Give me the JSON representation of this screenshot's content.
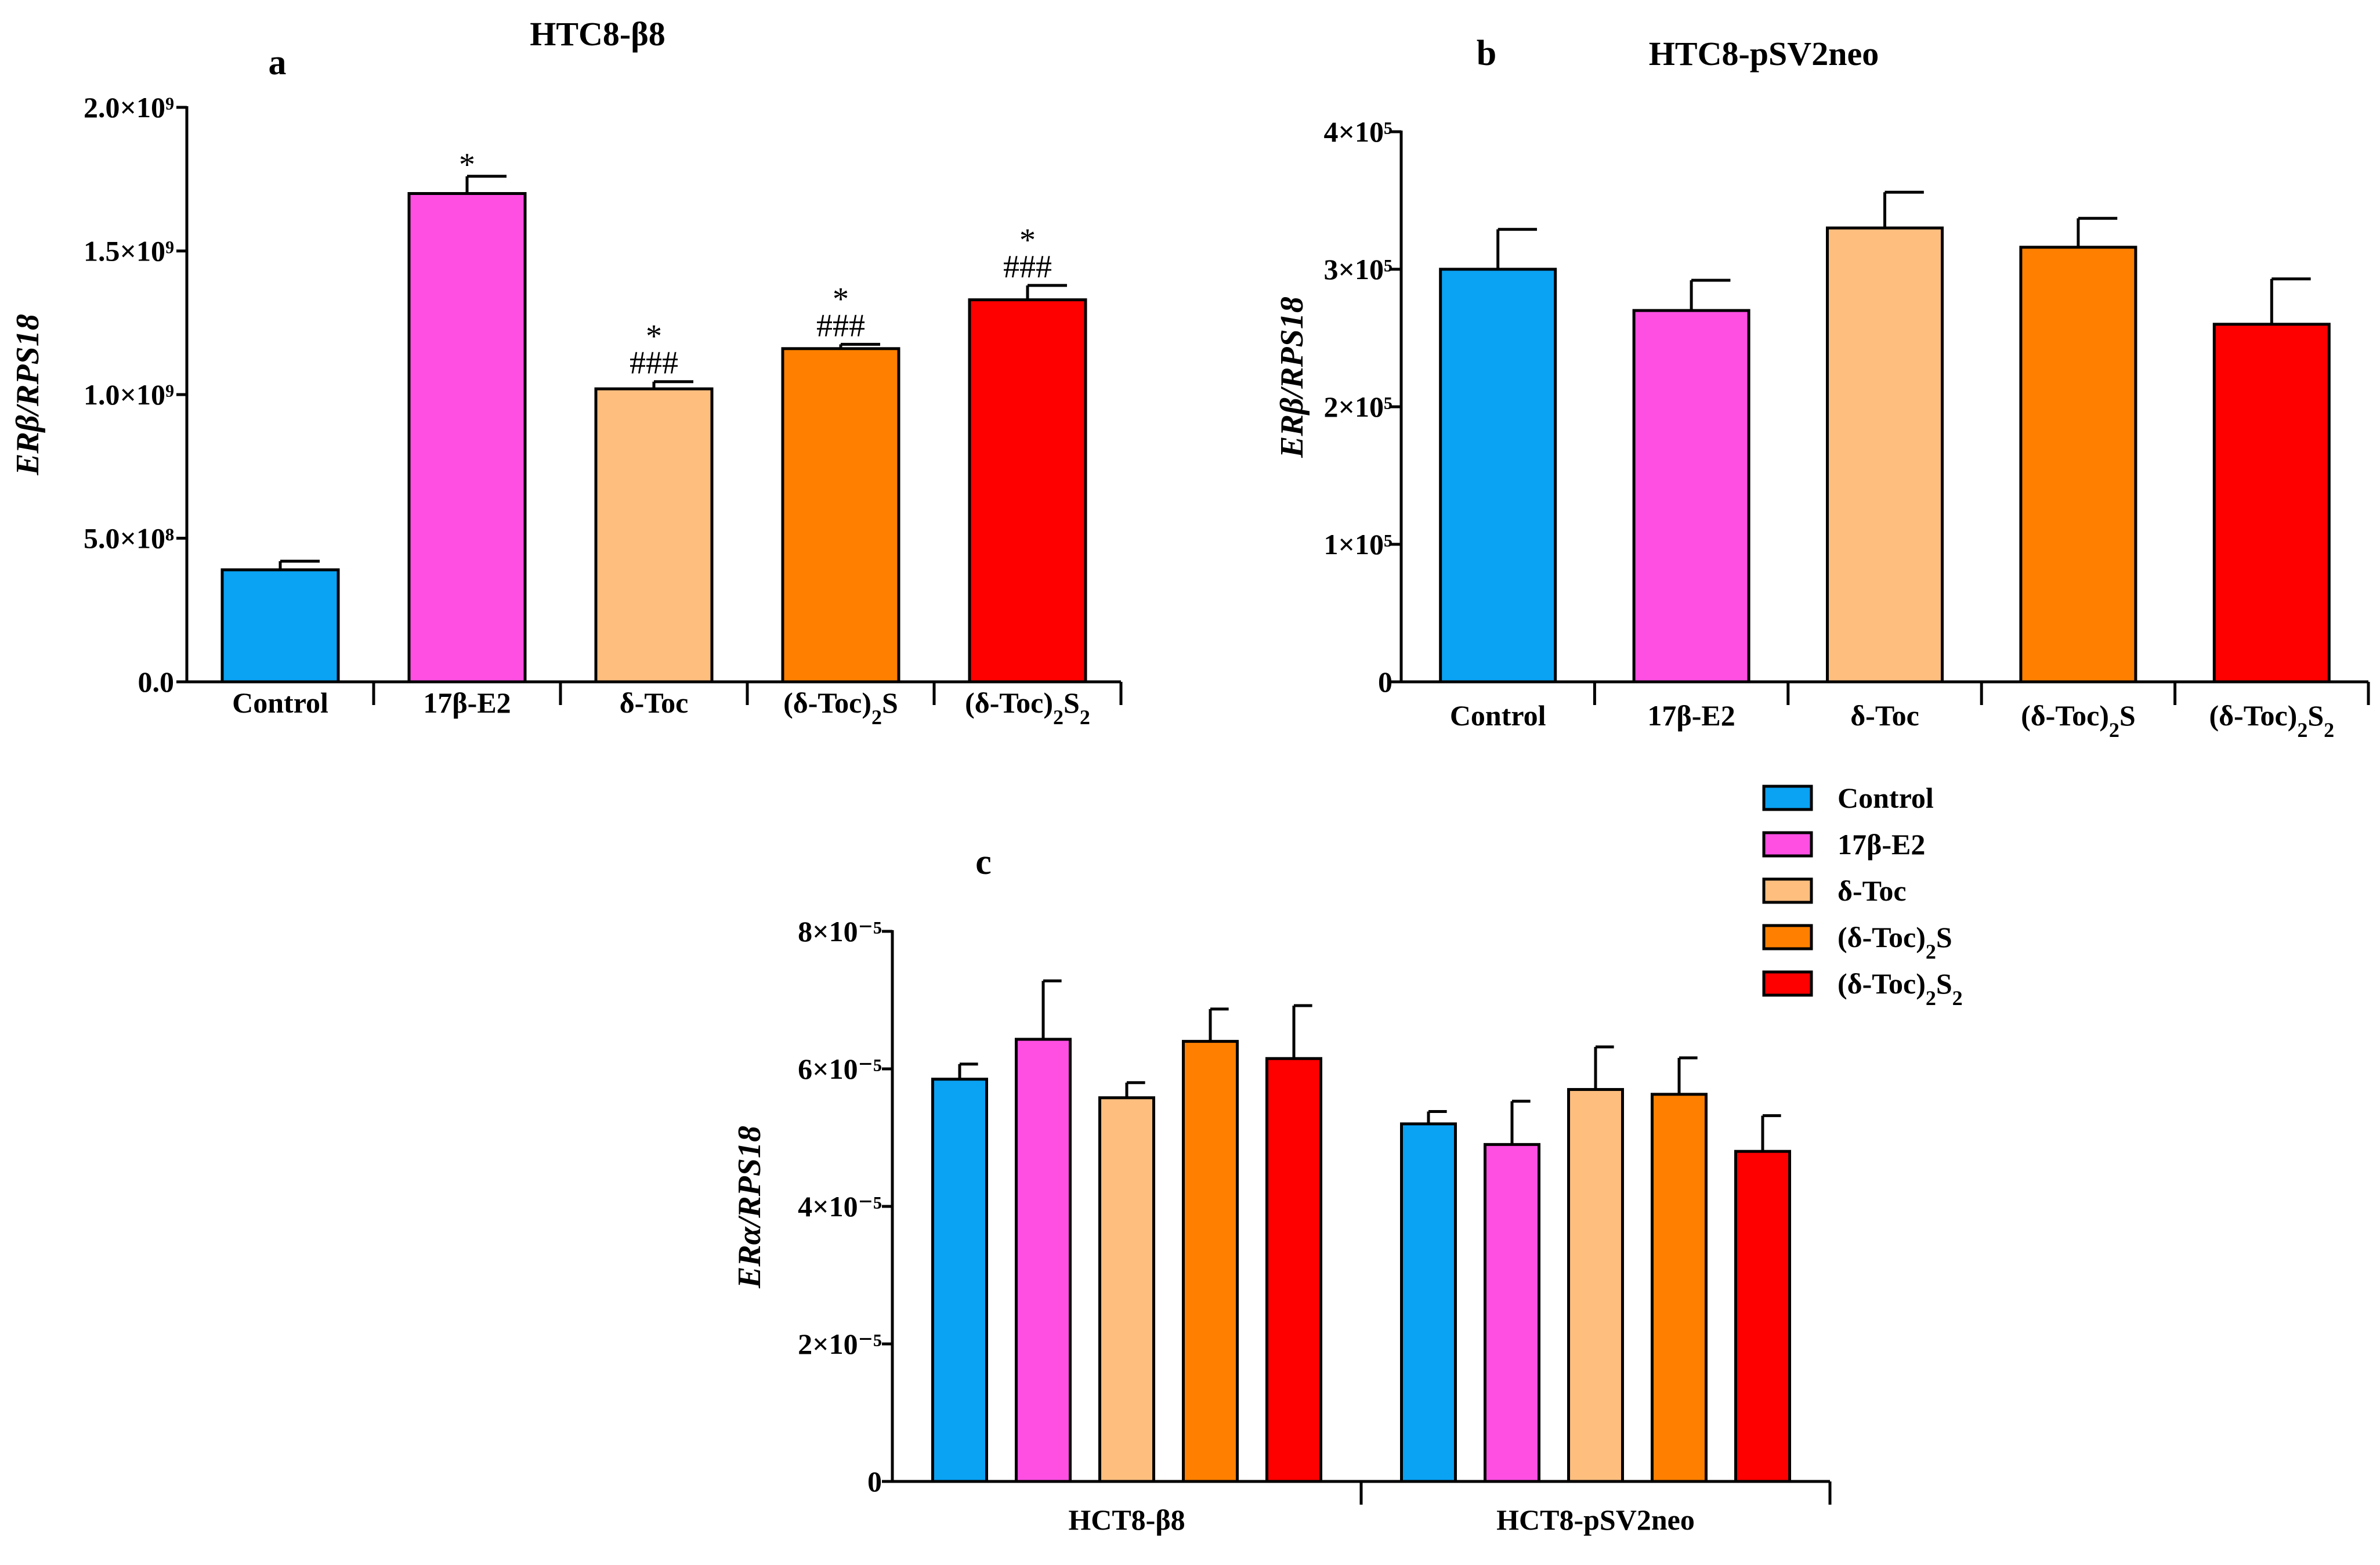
{
  "colors": {
    "control": "#0aa2f3",
    "e2": "#ff4fe3",
    "dtoc": "#fdbe7e",
    "dtoc2s": "#ff8000",
    "dtoc2s2": "#ff0000"
  },
  "legend": {
    "items": [
      {
        "label": "Control",
        "color": "#0aa2f3"
      },
      {
        "label": "17β-E2",
        "color": "#ff4fe3"
      },
      {
        "label": "δ-Toc",
        "color": "#fdbe7e"
      },
      {
        "label": "(δ-Toc)₂S",
        "color": "#ff8000"
      },
      {
        "label": "(δ-Toc)₂S₂",
        "color": "#ff0000"
      }
    ]
  },
  "chart_data": [
    {
      "id": "a",
      "type": "bar",
      "panel_letter": "a",
      "title": "HTC8-β8",
      "ylabel": "ERβ/RPS18",
      "ylim": [
        0,
        2000000000
      ],
      "yticks": [
        0,
        500000000,
        1000000000,
        1500000000,
        2000000000
      ],
      "ytick_labels": [
        "0.0",
        "5.0×10⁸",
        "1.0×10⁹",
        "1.5×10⁹",
        "2.0×10⁹"
      ],
      "categories": [
        "Control",
        "17β-E2",
        "δ-Toc",
        "(δ-Toc)₂S",
        "(δ-Toc)₂S₂"
      ],
      "values": [
        390000000,
        1700000000,
        1020000000,
        1160000000,
        1330000000
      ],
      "errors": [
        30000000,
        60000000,
        25000000,
        15000000,
        50000000
      ],
      "annotations": [
        {
          "category": 1,
          "lines": [
            "*"
          ]
        },
        {
          "category": 2,
          "lines": [
            "*",
            "###"
          ]
        },
        {
          "category": 3,
          "lines": [
            "*",
            "###"
          ]
        },
        {
          "category": 4,
          "lines": [
            "*",
            "###"
          ]
        }
      ]
    },
    {
      "id": "b",
      "type": "bar",
      "panel_letter": "b",
      "title": "HTC8-pSV2neo",
      "ylabel": "ERβ/RPS18",
      "ylim": [
        0,
        400000
      ],
      "yticks": [
        0,
        100000,
        200000,
        300000,
        400000
      ],
      "ytick_labels": [
        "0",
        "1×10⁵",
        "2×10⁵",
        "3×10⁵",
        "4×10⁵"
      ],
      "categories": [
        "Control",
        "17β-E2",
        "δ-Toc",
        "(δ-Toc)₂S",
        "(δ-Toc)₂S₂"
      ],
      "values": [
        300000,
        270000,
        330000,
        316000,
        260000
      ],
      "errors": [
        29000,
        22000,
        26000,
        21000,
        33000
      ]
    },
    {
      "id": "c",
      "type": "bar",
      "panel_letter": "c",
      "title": "",
      "ylabel": "ERα/RPS18",
      "ylim": [
        0,
        8e-05
      ],
      "yticks": [
        0,
        2e-05,
        4e-05,
        6e-05,
        8e-05
      ],
      "ytick_labels": [
        "0",
        "2×10⁻⁵",
        "4×10⁻⁵",
        "6×10⁻⁵",
        "8×10⁻⁵"
      ],
      "categories": [
        "HCT8-β8",
        "HCT8-pSV2neo"
      ],
      "series": [
        {
          "name": "Control",
          "values": [
            5.85e-05,
            5.2e-05
          ],
          "errors": [
            2.2e-06,
            1.8e-06
          ]
        },
        {
          "name": "17β-E2",
          "values": [
            6.43e-05,
            4.9e-05
          ],
          "errors": [
            8.5e-06,
            6.3e-06
          ]
        },
        {
          "name": "δ-Toc",
          "values": [
            5.58e-05,
            5.7e-05
          ],
          "errors": [
            2.2e-06,
            6.2e-06
          ]
        },
        {
          "name": "(δ-Toc)₂S",
          "values": [
            6.4e-05,
            5.63e-05
          ],
          "errors": [
            4.7e-06,
            5.3e-06
          ]
        },
        {
          "name": "(δ-Toc)₂S₂",
          "values": [
            6.15e-05,
            4.8e-05
          ],
          "errors": [
            7.7e-06,
            5.2e-06
          ]
        }
      ]
    }
  ]
}
